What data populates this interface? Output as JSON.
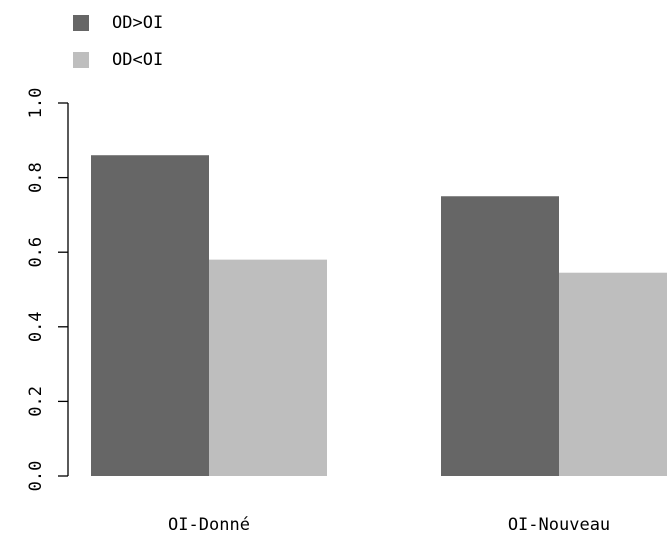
{
  "chart_data": {
    "type": "bar",
    "categories": [
      "OI-Donné",
      "OI-Nouveau"
    ],
    "series": [
      {
        "name": "OD>OI",
        "color": "#666666",
        "values": [
          0.86,
          0.75
        ]
      },
      {
        "name": "OD<OI",
        "color": "#bebebe",
        "values": [
          0.58,
          0.545
        ]
      }
    ],
    "title": "",
    "xlabel": "",
    "ylabel": "",
    "ylim": [
      0,
      1
    ],
    "yticks": [
      "0.0",
      "0.2",
      "0.4",
      "0.6",
      "0.8",
      "1.0"
    ],
    "grid": false,
    "legend_position": "top-left"
  }
}
